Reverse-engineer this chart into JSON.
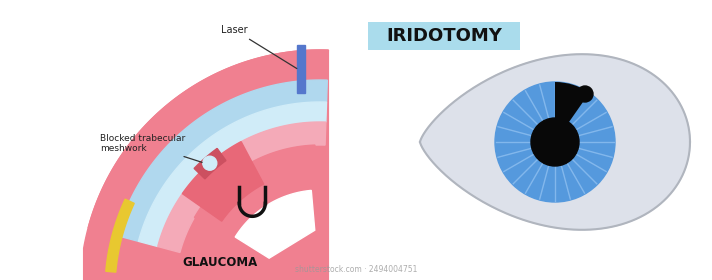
{
  "bg_color": "#ffffff",
  "title_text": "IRIDOTOMY",
  "title_bg": "#aadcec",
  "glaucoma_label": "GLAUCOMA",
  "laser_label": "Laser",
  "blocked_label": "Blocked trabecular\nmeshwork",
  "eye_white_color": "#dde1ea",
  "iris_color": "#5599dd",
  "iris_line_color": "#88bbee",
  "pupil_color": "#080808",
  "defect_color": "#080808",
  "pink_sclera": "#f08090",
  "pink_light": "#f4aaB8",
  "pink_deep": "#e86878",
  "pink_darker": "#cc5060",
  "blue_cornea": "#b0d8ee",
  "blue_aqueous": "#d0ecf8",
  "yellow_ciliary": "#e8c830",
  "laser_color": "#5577cc",
  "annotation_color": "#222222",
  "watermark": "shutterstock.com · 2494004751"
}
